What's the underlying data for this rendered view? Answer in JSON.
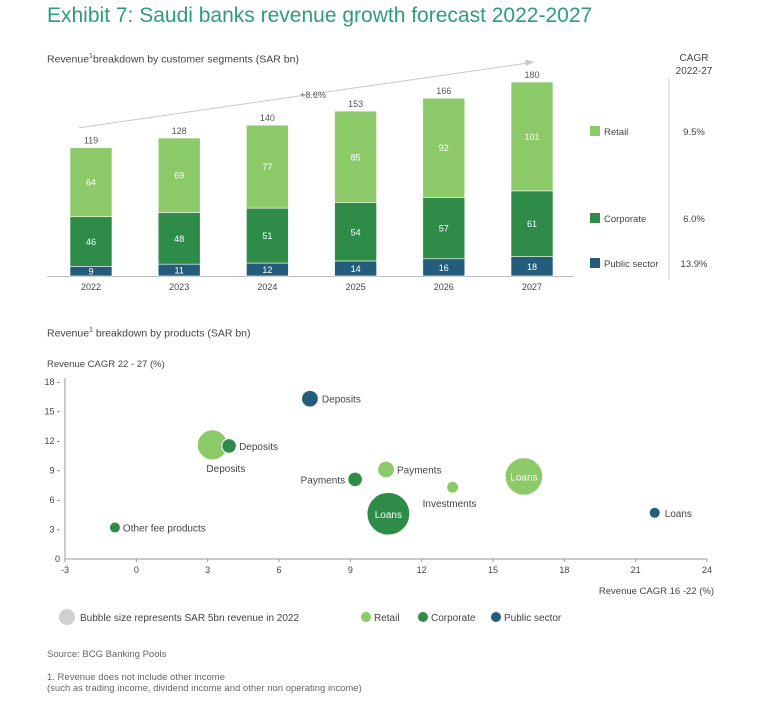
{
  "title": "Exhibit 7: Saudi banks revenue growth forecast 2022-2027",
  "top_subtitle": "breakdown by customer segments (SAR bn)",
  "top_subtitle_prefix": "Revenue",
  "footnote_mark": "1",
  "cagr_header_line1": "CAGR",
  "cagr_header_line2": "2022-27",
  "growth_annotation": "+8.6%",
  "bottom_subtitle": " breakdown by products (SAR bn)",
  "bubble_size_legend": "Bubble size represents SAR 5bn revenue in 2022",
  "source": "Source: BCG Banking Pools",
  "note_line1": "1. Revenue does not include other income",
  "note_line2": "(such as trading income, dividend income and other non operating income)",
  "colors": {
    "retail": "#8cc969",
    "corporate": "#2e8b48",
    "public_sector": "#245d7c",
    "neutral": "#cfcfcf",
    "title": "#2c9c79"
  },
  "chart_data": [
    {
      "type": "bar",
      "stacked": true,
      "categories": [
        "2022",
        "2023",
        "2024",
        "2025",
        "2026",
        "2027"
      ],
      "totals": [
        119,
        128,
        140,
        153,
        166,
        180
      ],
      "series": [
        {
          "name": "Public sector",
          "values": [
            9,
            11,
            12,
            14,
            16,
            18
          ],
          "cagr": "13.9%"
        },
        {
          "name": "Corporate",
          "values": [
            46,
            48,
            51,
            54,
            57,
            61
          ],
          "cagr": "6.0%"
        },
        {
          "name": "Retail",
          "values": [
            64,
            69,
            77,
            85,
            92,
            101
          ],
          "cagr": "9.5%"
        }
      ],
      "ylim": [
        0,
        180
      ]
    },
    {
      "type": "scatter",
      "bubble": true,
      "xlabel": "Revenue CAGR 16 -22 (%)",
      "ylabel": "Revenue CAGR 22 - 27 (%)",
      "xlim": [
        -3,
        24
      ],
      "ylim": [
        0,
        18
      ],
      "xticks": [
        -3,
        0,
        3,
        6,
        9,
        12,
        15,
        18,
        21,
        24
      ],
      "yticks": [
        0,
        3,
        6,
        9,
        12,
        15,
        18
      ],
      "legend": [
        "Retail",
        "Corporate",
        "Public sector"
      ],
      "points": [
        {
          "label": "Deposits",
          "segment": "public_sector",
          "x": 7.3,
          "y": 16.3,
          "size": 4
        },
        {
          "label": "Deposits",
          "segment": "retail",
          "x": 3.2,
          "y": 11.6,
          "size": 13
        },
        {
          "label": "Deposits",
          "segment": "corporate",
          "x": 3.9,
          "y": 11.5,
          "size": 3
        },
        {
          "label": "Payments",
          "segment": "retail",
          "x": 10.5,
          "y": 9.1,
          "size": 4
        },
        {
          "label": "Payments",
          "segment": "corporate",
          "x": 9.2,
          "y": 8.1,
          "size": 3
        },
        {
          "label": "Investments",
          "segment": "retail",
          "x": 13.3,
          "y": 7.3,
          "size": 2
        },
        {
          "label": "Loans",
          "segment": "retail",
          "x": 16.3,
          "y": 8.4,
          "size": 20
        },
        {
          "label": "Loans",
          "segment": "corporate",
          "x": 10.6,
          "y": 4.6,
          "size": 26
        },
        {
          "label": "Loans",
          "segment": "public_sector",
          "x": 21.8,
          "y": 4.7,
          "size": 1
        },
        {
          "label": "Other fee products",
          "segment": "corporate",
          "x": -0.9,
          "y": 3.2,
          "size": 0.8
        }
      ]
    }
  ]
}
